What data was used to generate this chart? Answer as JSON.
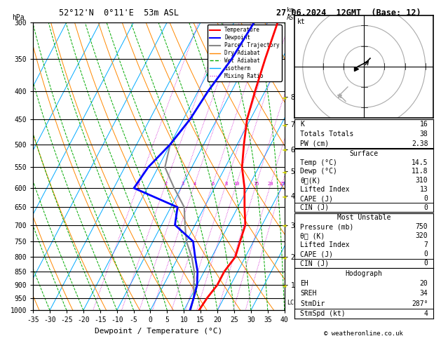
{
  "title_left": "52°12'N  0°11'E  53m ASL",
  "title_right": "27.06.2024  12GMT  (Base: 12)",
  "xlabel": "Dewpoint / Temperature (°C)",
  "ylabel_left": "hPa",
  "pressure_levels": [
    300,
    350,
    400,
    450,
    500,
    550,
    600,
    650,
    700,
    750,
    800,
    850,
    900,
    950,
    1000
  ],
  "temp_x": [
    -7,
    -5,
    -3,
    -1,
    2,
    5,
    9,
    12,
    15,
    16,
    17,
    16,
    16,
    15,
    14.5
  ],
  "dewp_x": [
    -14,
    -15,
    -17,
    -18,
    -20,
    -23,
    -24,
    -8,
    -6,
    2,
    5,
    8,
    10,
    11,
    11.8
  ],
  "parcel_x": [
    -14,
    -15,
    -17,
    -18,
    -20,
    -18,
    -12,
    -6,
    -3,
    0,
    4,
    7,
    9,
    11,
    12
  ],
  "temp_color": "#ff0000",
  "dewp_color": "#0000ff",
  "parcel_color": "#888888",
  "isotherm_color": "#00aaff",
  "dry_adiabat_color": "#ff8800",
  "wet_adiabat_color": "#00aa00",
  "mixing_ratio_color": "#cc00cc",
  "background_color": "#ffffff",
  "xlim": [
    -35,
    40
  ],
  "mixing_ratio_labels": [
    1,
    2,
    3,
    4,
    6,
    8,
    10,
    15,
    20,
    25
  ],
  "mixing_ratio_label_p": 590,
  "km_ticks": [
    1,
    2,
    3,
    4,
    5,
    6,
    7,
    8
  ],
  "km_pressures": [
    900,
    800,
    700,
    620,
    560,
    510,
    460,
    410
  ],
  "lcl_pressure": 968,
  "stats": {
    "K": 16,
    "Totals_Totals": 38,
    "PW_cm": 2.38,
    "Surface_Temp": 14.5,
    "Surface_Dewp": 11.8,
    "theta_e_K": 310,
    "Lifted_Index": 13,
    "CAPE_J": 0,
    "CIN_J": 0,
    "MU_Pressure_mb": 750,
    "MU_theta_e_K": 320,
    "MU_Lifted_Index": 7,
    "MU_CAPE_J": 0,
    "MU_CIN_J": 0,
    "EH": 20,
    "SREH": 34,
    "StmDir": "287°",
    "StmSpd_kt": 4
  },
  "skew_deg_per_decade": 45
}
